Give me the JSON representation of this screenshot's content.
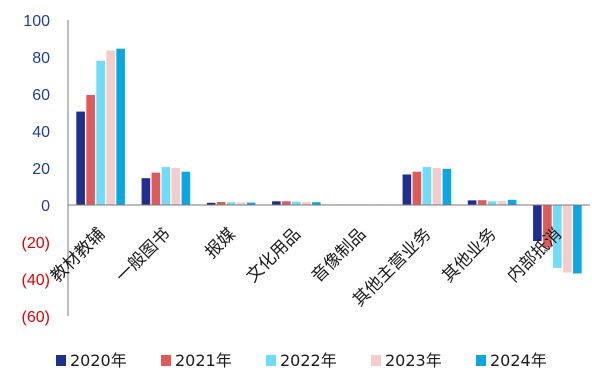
{
  "chart_data": {
    "type": "bar",
    "categories": [
      "教材教辅",
      "一般图书",
      "报媒",
      "文化用品",
      "音像制品",
      "其他主营业务",
      "其他业务",
      "内部抵消"
    ],
    "series": [
      {
        "name": "2020年",
        "color": "#1f2f8f",
        "values": [
          50.5,
          14.5,
          1.2,
          2.0,
          0.3,
          16.5,
          2.5,
          -19.5
        ]
      },
      {
        "name": "2021年",
        "color": "#e05a5a",
        "values": [
          59.5,
          17.5,
          1.6,
          2.0,
          0.3,
          18.0,
          2.6,
          -23.0
        ]
      },
      {
        "name": "2022年",
        "color": "#6fdcfb",
        "values": [
          78.0,
          20.5,
          1.5,
          1.8,
          0.3,
          20.5,
          2.0,
          -34.0
        ]
      },
      {
        "name": "2023年",
        "color": "#f5cccc",
        "values": [
          83.5,
          20.0,
          1.4,
          1.6,
          0.3,
          20.0,
          2.1,
          -36.5
        ]
      },
      {
        "name": "2024年",
        "color": "#0aa7e3",
        "values": [
          84.5,
          18.0,
          1.3,
          1.5,
          0.3,
          19.5,
          2.8,
          -37.0
        ]
      }
    ],
    "yticks": [
      "100",
      "80",
      "60",
      "40",
      "20",
      "0",
      "(20)",
      "(40)",
      "(60)"
    ],
    "ytick_values": [
      100,
      80,
      60,
      40,
      20,
      0,
      -20,
      -40,
      -60
    ],
    "ylim": [
      -60,
      100
    ],
    "positive_tick_color": "#1f3f8f",
    "negative_tick_color": "#e00000",
    "grid": false,
    "legend_position": "bottom"
  }
}
